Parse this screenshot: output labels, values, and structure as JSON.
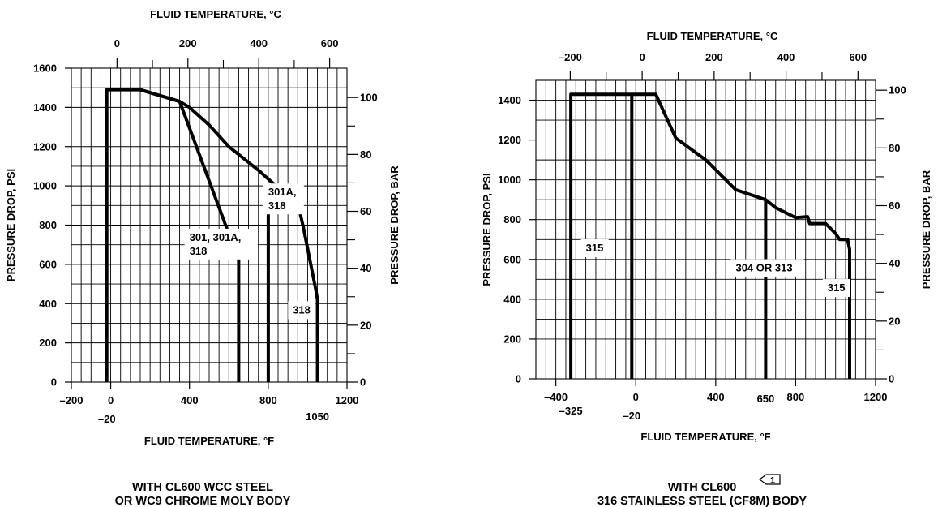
{
  "chart_data": [
    {
      "type": "line",
      "x_unit": "°F",
      "xlabel": "FLUID TEMPERATURE, °F",
      "x2label": "FLUID TEMPERATURE, °C",
      "ylabel": "PRESSURE DROP, PSI",
      "y2label": "PRESSURE DROP, BAR",
      "xlim": [
        -200,
        1200
      ],
      "ylim": [
        0,
        1600
      ],
      "xticks": [
        "–200",
        "0",
        "400",
        "800",
        "1200"
      ],
      "xticks_special": [
        "–20",
        "1050"
      ],
      "x2ticks": [
        "0",
        "200",
        "400",
        "600"
      ],
      "yticks": [
        "0",
        "200",
        "400",
        "600",
        "800",
        "1000",
        "1200",
        "1400",
        "1600"
      ],
      "y2ticks": [
        "0",
        "20",
        "40",
        "60",
        "80",
        "100"
      ],
      "caption": [
        "WITH CL600 WCC STEEL",
        "OR WC9 CHROME MOLY BODY"
      ],
      "series": [
        {
          "name": "301, 301A, 318",
          "x": [
            -20,
            -20,
            150,
            350,
            650,
            650
          ],
          "y": [
            0,
            1490,
            1490,
            1430,
            620,
            0
          ]
        },
        {
          "name": "301A, 318",
          "x": [
            150,
            350,
            400,
            500,
            600,
            750,
            850,
            940,
            960,
            980,
            1040,
            1050,
            1050
          ],
          "y": [
            1490,
            1430,
            1400,
            1310,
            1200,
            1080,
            990,
            910,
            870,
            780,
            480,
            420,
            0
          ]
        },
        {
          "name": "318",
          "x": [
            800,
            800
          ],
          "y": [
            0,
            860
          ]
        }
      ],
      "annotations": [
        {
          "text": [
            "301, 301A,",
            "318"
          ],
          "at": [
            400,
            720
          ]
        },
        {
          "text": [
            "301A,",
            "318"
          ],
          "at": [
            800,
            950
          ]
        },
        {
          "text": [
            "318"
          ],
          "at": [
            925,
            350
          ]
        }
      ]
    },
    {
      "type": "line",
      "x_unit": "°F",
      "xlabel": "FLUID TEMPERATURE, °F",
      "x2label": "FLUID TEMPERATURE, °C",
      "ylabel": "PRESSURE DROP, PSI",
      "y2label": "PRESSURE DROP, BAR",
      "xlim": [
        -500,
        1200
      ],
      "ylim": [
        0,
        1500
      ],
      "xticks": [
        "–400",
        "0",
        "400",
        "800",
        "1200"
      ],
      "xticks_special": [
        "–325",
        "–20",
        "650"
      ],
      "x2ticks": [
        "–200",
        "0",
        "200",
        "400",
        "600"
      ],
      "yticks": [
        "0",
        "200",
        "400",
        "600",
        "800",
        "1000",
        "1200",
        "1400"
      ],
      "y2ticks": [
        "0",
        "20",
        "40",
        "60",
        "80",
        "100"
      ],
      "caption": [
        "WITH CL600",
        "316 STAINLESS STEEL (CF8M) BODY"
      ],
      "caption_marker": "1",
      "series": [
        {
          "name": "315",
          "x": [
            -325,
            -325,
            100,
            200,
            350,
            500,
            650,
            700,
            800,
            860,
            870,
            875,
            950,
            1000,
            1020,
            1050,
            1060,
            1070,
            1070
          ],
          "y": [
            0,
            1430,
            1430,
            1210,
            1100,
            950,
            900,
            860,
            810,
            815,
            780,
            780,
            780,
            730,
            700,
            700,
            700,
            650,
            0
          ]
        },
        {
          "name": "304 OR 313",
          "x": [
            -20,
            -20
          ],
          "y": [
            0,
            1430
          ]
        },
        {
          "name": "315 (650 °F)",
          "x": [
            650,
            650
          ],
          "y": [
            0,
            900
          ]
        }
      ],
      "annotations": [
        {
          "text": [
            "315"
          ],
          "at": [
            -250,
            640
          ]
        },
        {
          "text": [
            "304 OR 313"
          ],
          "at": [
            500,
            540
          ]
        },
        {
          "text": [
            "315"
          ],
          "at": [
            960,
            440
          ]
        }
      ]
    }
  ]
}
